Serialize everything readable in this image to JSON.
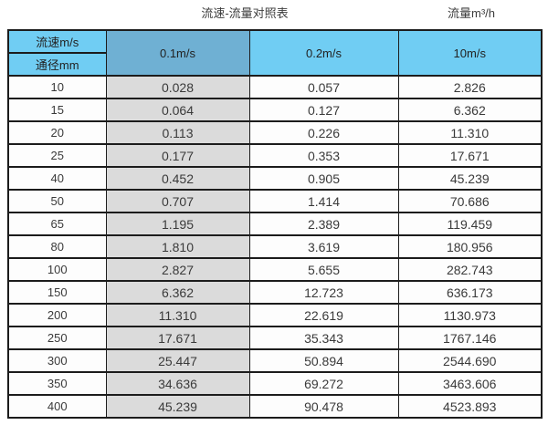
{
  "captions": {
    "table_title": "流速-流量对照表",
    "unit_caption": "流量m³/h"
  },
  "chart_data": {
    "type": "table",
    "title": "流速-流量对照表",
    "right_caption": "流量m³/h",
    "header": {
      "velocity_label": "流速m/s",
      "diameter_label": "通径mm",
      "velocity_columns": [
        "0.1m/s",
        "0.2m/s",
        "10m/s"
      ]
    },
    "diameter_unit": "mm",
    "flow_unit": "m³/h",
    "rows": [
      [
        "10",
        "0.028",
        "0.057",
        "2.826"
      ],
      [
        "15",
        "0.064",
        "0.127",
        "6.362"
      ],
      [
        "20",
        "0.113",
        "0.226",
        "11.310"
      ],
      [
        "25",
        "0.177",
        "0.353",
        "17.671"
      ],
      [
        "40",
        "0.452",
        "0.905",
        "45.239"
      ],
      [
        "50",
        "0.707",
        "1.414",
        "70.686"
      ],
      [
        "65",
        "1.195",
        "2.389",
        "119.459"
      ],
      [
        "80",
        "1.810",
        "3.619",
        "180.956"
      ],
      [
        "100",
        "2.827",
        "5.655",
        "282.743"
      ],
      [
        "150",
        "6.362",
        "12.723",
        "636.173"
      ],
      [
        "200",
        "11.310",
        "22.619",
        "1130.973"
      ],
      [
        "250",
        "17.671",
        "35.343",
        "1767.146"
      ],
      [
        "300",
        "25.447",
        "50.894",
        "2544.690"
      ],
      [
        "350",
        "34.636",
        "69.272",
        "3463.606"
      ],
      [
        "400",
        "45.239",
        "90.478",
        "4523.893"
      ]
    ]
  },
  "colors": {
    "header_blue": "#70CDF3",
    "header_muted_blue": "#6FB0D3",
    "column_gray": "#DBDBDB",
    "border": "#1C1C1C",
    "text": "#3A3A3A",
    "title_text": "#3C3C3C",
    "row_bg": "#FDFDFD"
  }
}
